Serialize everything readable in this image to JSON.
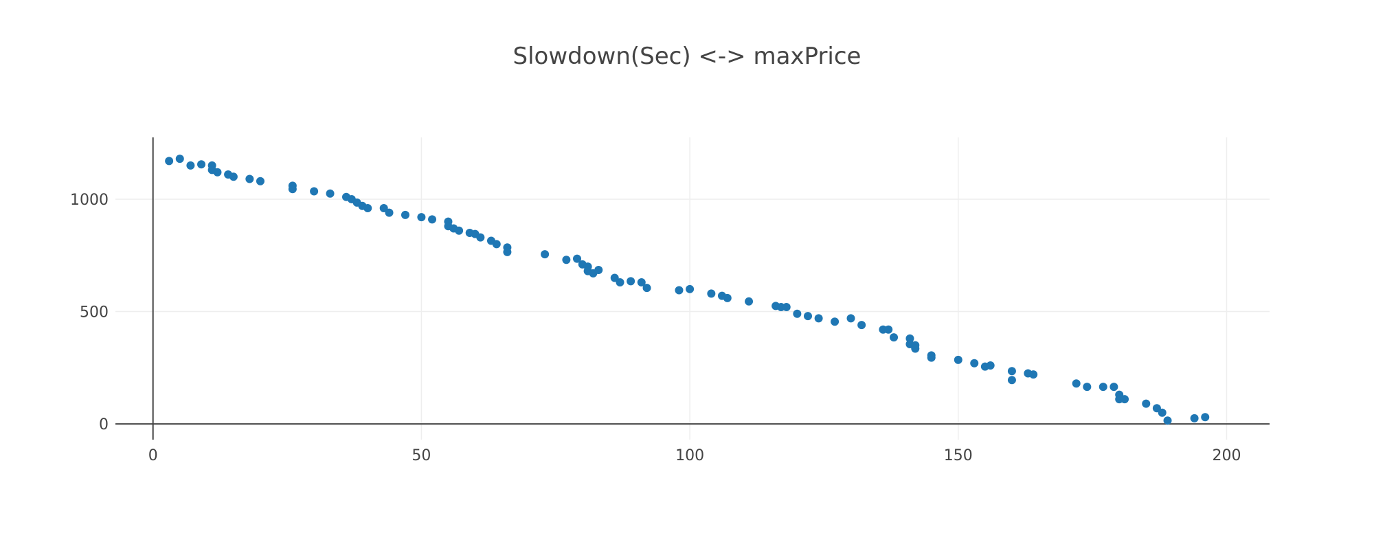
{
  "chart_data": {
    "type": "scatter",
    "title": "Slowdown(Sec) <-> maxPrice",
    "xlabel": "",
    "ylabel": "",
    "xlim": [
      -7,
      208
    ],
    "ylim": [
      -70,
      1275
    ],
    "x_ticks": [
      0,
      50,
      100,
      150,
      200
    ],
    "y_ticks": [
      0,
      500,
      1000
    ],
    "x_tick_labels": [
      "0",
      "50",
      "100",
      "150",
      "200"
    ],
    "y_tick_labels": [
      "0",
      "500",
      "1000"
    ],
    "grid": true,
    "legend": "none",
    "marker_color": "#1f77b4",
    "grid_color": "#eeeeee",
    "axis_color": "#444444",
    "series": [
      {
        "x": [
          3,
          5,
          7,
          9,
          11,
          11,
          12,
          14,
          15,
          18,
          20,
          26,
          26,
          30,
          33,
          36,
          37,
          38,
          39,
          40,
          43,
          44,
          47,
          50,
          52,
          55,
          55,
          56,
          57,
          59,
          60,
          61,
          63,
          64,
          66,
          66,
          73,
          77,
          79,
          80,
          81,
          81,
          82,
          83,
          86,
          87,
          89,
          91,
          92,
          98,
          100,
          104,
          106,
          107,
          111,
          116,
          117,
          118,
          120,
          122,
          124,
          127,
          130,
          132,
          136,
          137,
          138,
          141,
          141,
          142,
          142,
          145,
          145,
          150,
          153,
          155,
          156,
          160,
          160,
          163,
          164,
          172,
          174,
          177,
          179,
          180,
          180,
          181,
          185,
          187,
          188,
          189,
          194,
          196
        ],
        "y": [
          1170,
          1180,
          1150,
          1155,
          1150,
          1130,
          1120,
          1110,
          1100,
          1090,
          1080,
          1060,
          1045,
          1035,
          1025,
          1010,
          1000,
          985,
          970,
          960,
          960,
          940,
          930,
          920,
          910,
          900,
          880,
          870,
          860,
          850,
          845,
          830,
          815,
          800,
          785,
          765,
          755,
          730,
          735,
          710,
          700,
          680,
          670,
          685,
          650,
          630,
          635,
          630,
          605,
          595,
          600,
          580,
          570,
          560,
          545,
          525,
          520,
          520,
          490,
          480,
          470,
          455,
          470,
          440,
          420,
          420,
          385,
          380,
          355,
          350,
          335,
          305,
          295,
          285,
          270,
          255,
          260,
          235,
          195,
          225,
          220,
          180,
          165,
          165,
          165,
          130,
          110,
          110,
          90,
          70,
          50,
          15,
          25,
          30
        ]
      }
    ]
  }
}
